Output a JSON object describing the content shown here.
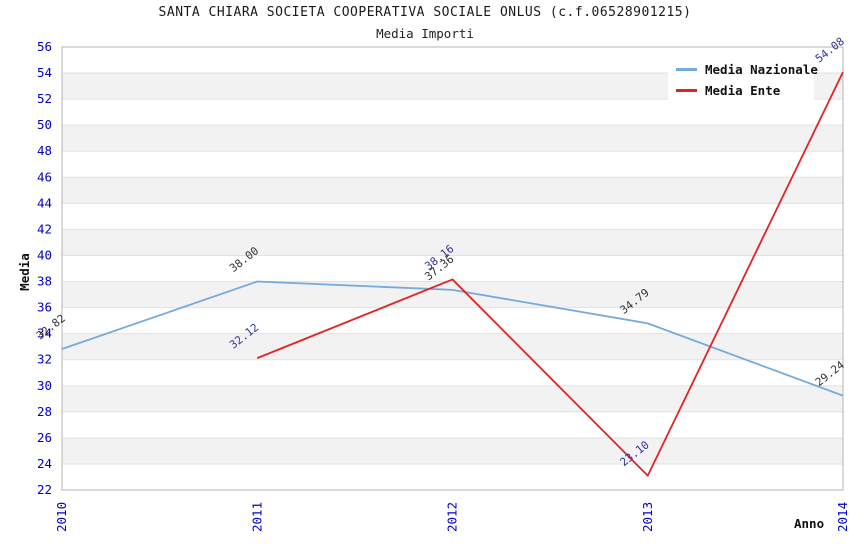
{
  "page": {
    "title": "SANTA CHIARA SOCIETA COOPERATIVA SOCIALE ONLUS (c.f.06528901215)",
    "subtitle": "Media Importi"
  },
  "colors": {
    "band_gray": "#f2f2f2",
    "band_white": "#ffffff",
    "grid_line": "#e2e2e2",
    "frame": "#b4b4b4",
    "tick_label": "#0000cc",
    "nazionale": "#74aadc",
    "ente": "#e02424"
  },
  "legend": {
    "items": [
      {
        "label": "Media Nazionale",
        "color": "#74aadc"
      },
      {
        "label": "Media Ente",
        "color": "#e02424"
      }
    ]
  },
  "chart_data": {
    "type": "line",
    "title": "SANTA CHIARA SOCIETA COOPERATIVA SOCIALE ONLUS (c.f.06528901215)",
    "subtitle": "Media Importi",
    "xlabel": "Anno",
    "ylabel": "Media",
    "ylim": [
      22,
      56
    ],
    "ytick_step": 2,
    "yticks": [
      22,
      24,
      26,
      28,
      30,
      32,
      34,
      36,
      38,
      40,
      42,
      44,
      46,
      48,
      50,
      52,
      54,
      56
    ],
    "categories": [
      2010,
      2011,
      2012,
      2013,
      2014
    ],
    "grid": "horizontal bands, light gray alternating, gridline every 2 units",
    "legend_position": "top-right",
    "series": [
      {
        "name": "Media Nazionale",
        "color": "#74aadc",
        "label_color": "#333333",
        "x": [
          2010,
          2011,
          2012,
          2013,
          2014
        ],
        "values": [
          32.82,
          38.0,
          37.36,
          34.79,
          29.24
        ],
        "labels": [
          "32.82",
          "38.00",
          "37.36",
          "34.79",
          "29.24"
        ]
      },
      {
        "name": "Media Ente",
        "color": "#e02424",
        "label_color": "#333399",
        "x": [
          2011,
          2012,
          2013,
          2014
        ],
        "values": [
          32.12,
          38.16,
          23.1,
          54.08
        ],
        "labels": [
          "32.12",
          "38.16",
          "23.10",
          "54.08"
        ]
      }
    ]
  }
}
